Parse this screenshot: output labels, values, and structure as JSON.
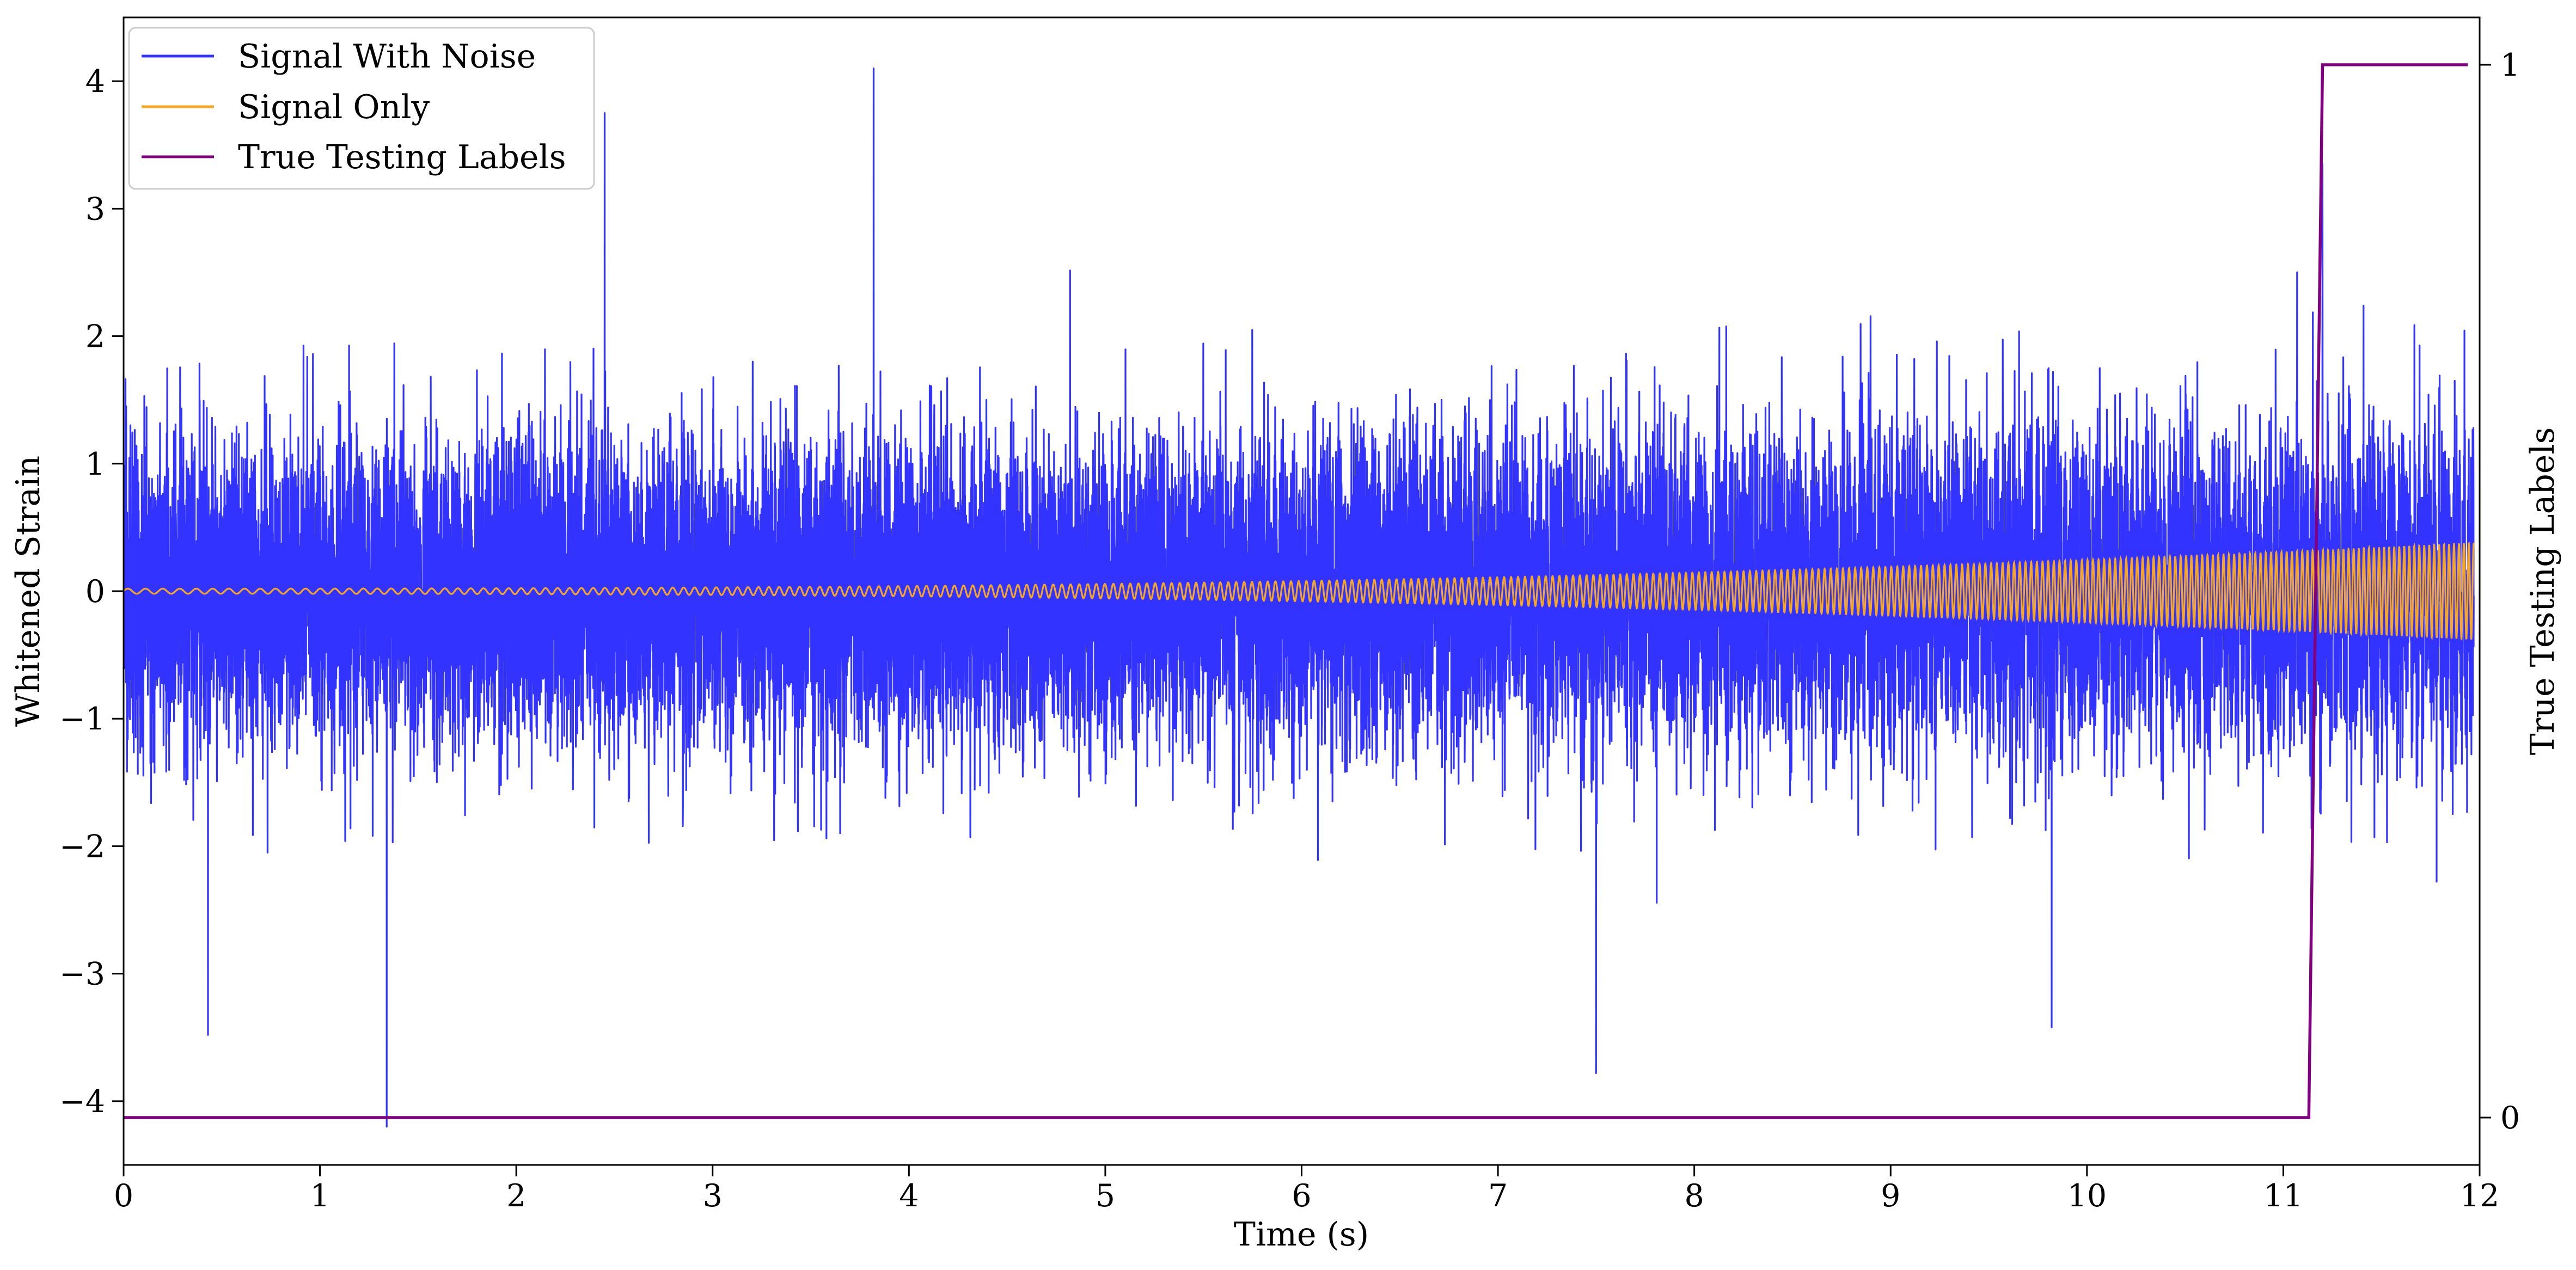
{
  "chart_data": {
    "type": "line",
    "xlabel": "Time (s)",
    "ylabel": "Whitened Strain",
    "y2label": "True Testing Labels",
    "xlim": [
      0,
      12
    ],
    "ylim": [
      -4.5,
      4.5
    ],
    "y2lim": [
      -0.045,
      1.045
    ],
    "xticks": [
      0,
      1,
      2,
      3,
      4,
      5,
      6,
      7,
      8,
      9,
      10,
      11,
      12
    ],
    "yticks": [
      -4,
      -3,
      -2,
      -1,
      0,
      1,
      2,
      3,
      4
    ],
    "y2ticks": [
      0,
      1
    ],
    "grid": false,
    "legend_position": "upper-left",
    "series": [
      {
        "name": "Signal With Noise",
        "axis": "left",
        "color": "#3333ff",
        "sample_rate_hz": 2048,
        "noise_std": 0.6,
        "peaks": [
          {
            "x": 1.34,
            "y": -4.2
          },
          {
            "x": 2.45,
            "y": 3.75
          },
          {
            "x": 3.82,
            "y": 4.1
          },
          {
            "x": 7.5,
            "y": -3.78
          },
          {
            "x": 9.82,
            "y": -3.42
          },
          {
            "x": 0.43,
            "y": -3.48
          },
          {
            "x": 11.2,
            "y": 3.35
          }
        ]
      },
      {
        "name": "Signal Only",
        "axis": "left",
        "color": "#f5a623",
        "amplitude_start": 0.02,
        "amplitude_end": 0.38,
        "frequency_start_hz": 11,
        "frequency_end_hz": 40
      },
      {
        "name": "True Testing Labels",
        "axis": "right",
        "color": "#800080",
        "points": [
          [
            0,
            0
          ],
          [
            11.13,
            0
          ],
          [
            11.2,
            1
          ],
          [
            11.94,
            1
          ]
        ]
      }
    ]
  }
}
